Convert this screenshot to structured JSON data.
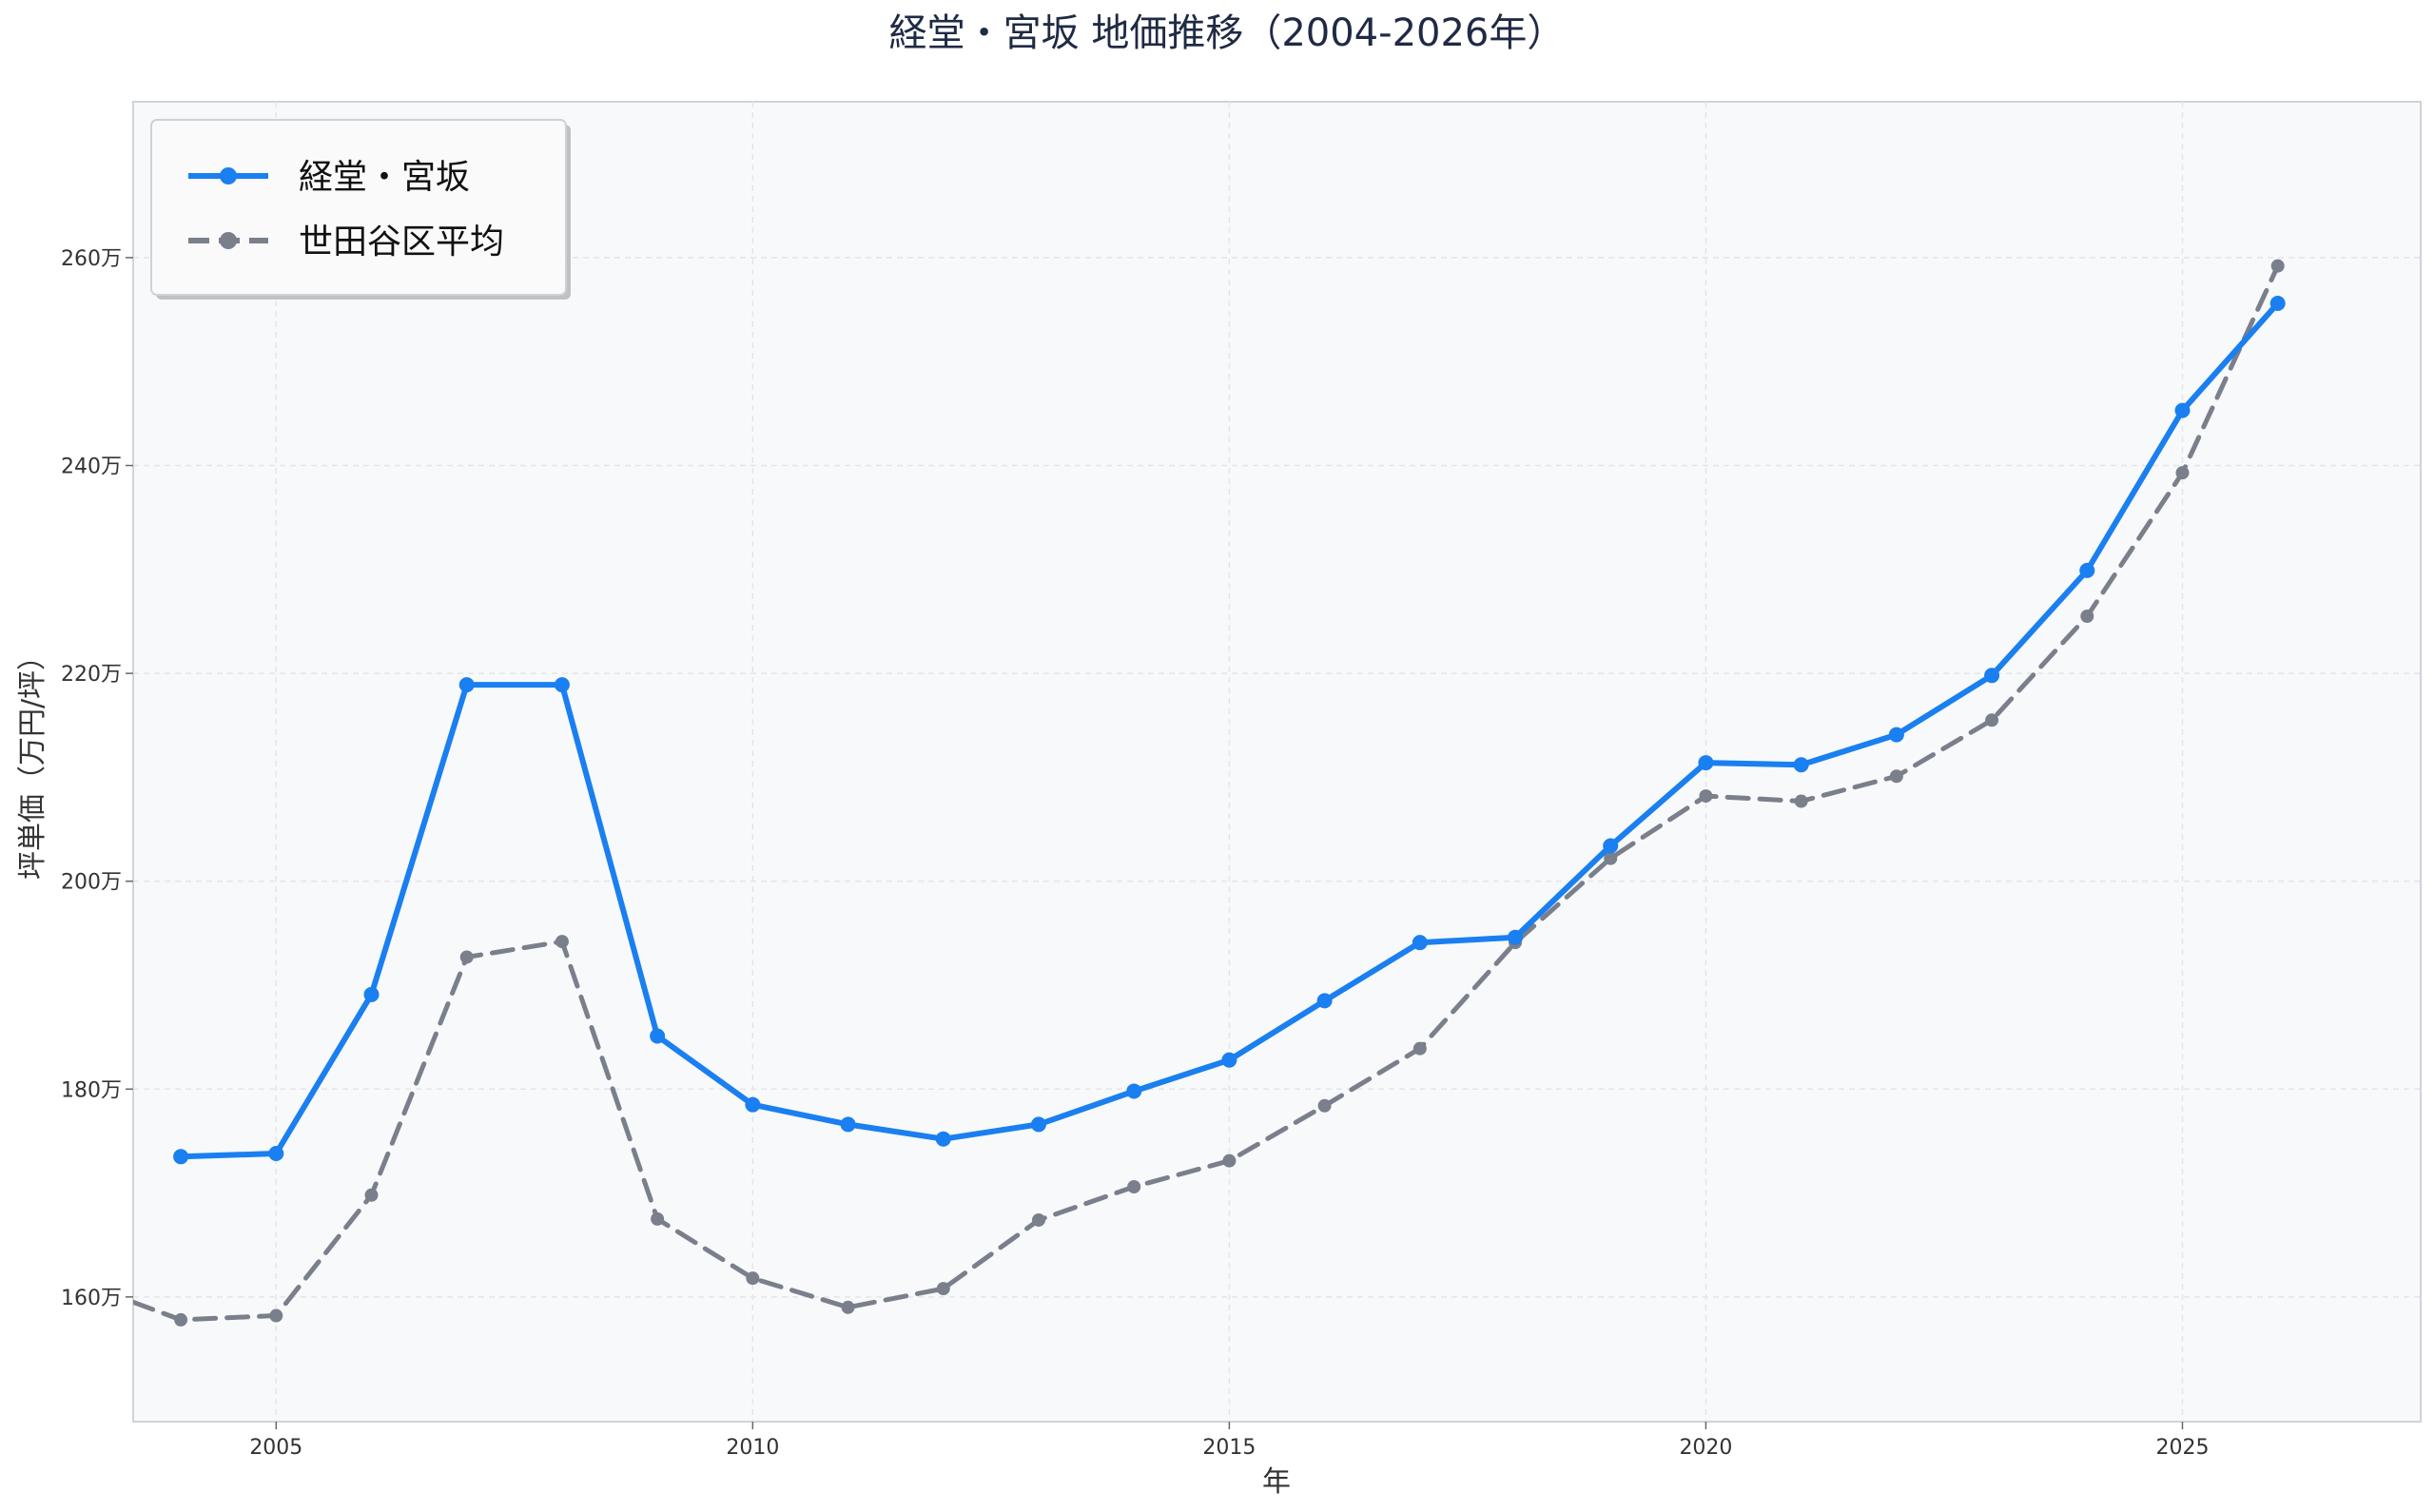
{
  "chart_data": {
    "type": "line",
    "title": "経堂・宮坂 地価推移（2004-2026年）",
    "xlabel": "年",
    "ylabel": "坪単価（万円/坪）",
    "xlim": [
      2003.5,
      2027.5
    ],
    "ylim": [
      1480000,
      2750000
    ],
    "x_ticks": [
      2005,
      2010,
      2015,
      2020,
      2025
    ],
    "x_tick_labels": [
      "2005",
      "2010",
      "2015",
      "2020",
      "2025"
    ],
    "y_ticks": [
      1600000,
      1800000,
      2000000,
      2200000,
      2400000,
      2600000
    ],
    "y_tick_labels": [
      "160万",
      "180万",
      "200万",
      "220万",
      "240万",
      "260万"
    ],
    "grid": true,
    "legend_position": "top-left",
    "series": [
      {
        "name": "経堂・宮坂",
        "color": "#1a7ff0",
        "style": "solid",
        "x": [
          2004,
          2005,
          2006,
          2007,
          2008,
          2009,
          2010,
          2011,
          2012,
          2013,
          2014,
          2015,
          2016,
          2017,
          2018,
          2019,
          2020,
          2021,
          2022,
          2023,
          2024,
          2025,
          2026
        ],
        "values": [
          1735000,
          1738000,
          1891000,
          2189000,
          2189000,
          1851000,
          1785000,
          1766000,
          1752000,
          1766000,
          1798000,
          1828000,
          1885000,
          1941000,
          1946000,
          2034000,
          2114000,
          2112000,
          2141000,
          2198000,
          2299000,
          2453000,
          2556000
        ]
      },
      {
        "name": "世田谷区平均",
        "color": "#7a7f8c",
        "style": "dashed",
        "x": [
          2003.5,
          2004,
          2005,
          2006,
          2007,
          2008,
          2009,
          2010,
          2011,
          2012,
          2013,
          2014,
          2015,
          2016,
          2017,
          2018,
          2019,
          2020,
          2021,
          2022,
          2023,
          2024,
          2025,
          2026
        ],
        "values": [
          1595000,
          1578000,
          1582000,
          1698000,
          1927000,
          1942000,
          1675000,
          1618000,
          1590000,
          1608000,
          1674000,
          1706000,
          1731000,
          1784000,
          1839000,
          1941000,
          2022000,
          2082000,
          2077000,
          2101000,
          2155000,
          2255000,
          2393000,
          2592000
        ],
        "point_flags": [
          false,
          true,
          true,
          true,
          true,
          true,
          true,
          true,
          true,
          true,
          true,
          true,
          true,
          true,
          true,
          true,
          true,
          true,
          true,
          true,
          true,
          true,
          true,
          true
        ]
      }
    ]
  }
}
